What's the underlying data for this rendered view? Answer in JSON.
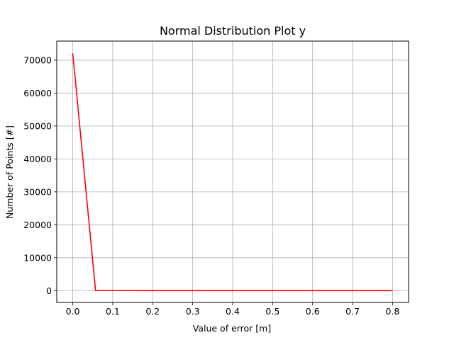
{
  "chart_data": {
    "type": "line",
    "title": "Normal Distribution Plot y",
    "xlabel": "Value of error [m]",
    "ylabel": "Number of Points [#]",
    "xlim": [
      -0.04,
      0.84
    ],
    "ylim": [
      -3600,
      75800
    ],
    "x_ticks": [
      0.0,
      0.1,
      0.2,
      0.3,
      0.4,
      0.5,
      0.6,
      0.7,
      0.8
    ],
    "x_tick_labels": [
      "0.0",
      "0.1",
      "0.2",
      "0.3",
      "0.4",
      "0.5",
      "0.6",
      "0.7",
      "0.8"
    ],
    "y_ticks": [
      0,
      10000,
      20000,
      30000,
      40000,
      50000,
      60000,
      70000
    ],
    "y_tick_labels": [
      "0",
      "10000",
      "20000",
      "30000",
      "40000",
      "50000",
      "60000",
      "70000"
    ],
    "grid": true,
    "series": [
      {
        "color": "#ff0000",
        "x": [
          0.0,
          0.0571,
          0.1143,
          0.1714,
          0.2286,
          0.2857,
          0.3429,
          0.4,
          0.4571,
          0.5143,
          0.5714,
          0.6286,
          0.6857,
          0.7429,
          0.8
        ],
        "y": [
          72100,
          5,
          1,
          0,
          0,
          0,
          0,
          0,
          0,
          0,
          0,
          0,
          0,
          0,
          0
        ]
      }
    ]
  }
}
